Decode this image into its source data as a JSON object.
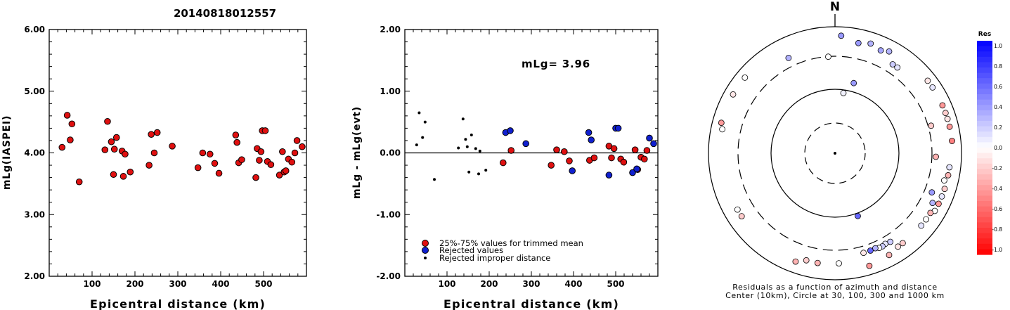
{
  "title": "20140818012557",
  "colors": {
    "used": "#e01010",
    "rejected": "#1020d0",
    "improper": "#000000",
    "outline": "#000000"
  },
  "chart_data": [
    {
      "id": "mlg",
      "type": "scatter",
      "xlabel": "Epicentral distance (km)",
      "ylabel": "mLg(IASPEI)",
      "xlim": [
        0,
        600
      ],
      "ylim": [
        2.0,
        6.0
      ],
      "xticks": [
        "100",
        "200",
        "300",
        "400",
        "500"
      ],
      "yticks": [
        "2.00",
        "3.00",
        "4.00",
        "5.00",
        "6.00"
      ],
      "points": [
        [
          30,
          4.09
        ],
        [
          42,
          4.61
        ],
        [
          49,
          4.21
        ],
        [
          53,
          4.47
        ],
        [
          70,
          3.53
        ],
        [
          130,
          4.05
        ],
        [
          136,
          4.51
        ],
        [
          145,
          4.18
        ],
        [
          150,
          3.65
        ],
        [
          152,
          4.06
        ],
        [
          157,
          4.25
        ],
        [
          170,
          4.03
        ],
        [
          173,
          3.62
        ],
        [
          177,
          3.98
        ],
        [
          189,
          3.69
        ],
        [
          233,
          3.8
        ],
        [
          238,
          4.3
        ],
        [
          245,
          4.0
        ],
        [
          252,
          4.33
        ],
        [
          287,
          4.11
        ],
        [
          347,
          3.76
        ],
        [
          358,
          4.0
        ],
        [
          375,
          3.98
        ],
        [
          386,
          3.83
        ],
        [
          396,
          3.67
        ],
        [
          435,
          4.29
        ],
        [
          438,
          4.17
        ],
        [
          442,
          3.84
        ],
        [
          449,
          3.89
        ],
        [
          482,
          3.6
        ],
        [
          485,
          4.07
        ],
        [
          490,
          3.88
        ],
        [
          494,
          4.02
        ],
        [
          497,
          4.36
        ],
        [
          504,
          4.36
        ],
        [
          509,
          3.86
        ],
        [
          517,
          3.81
        ],
        [
          537,
          3.64
        ],
        [
          544,
          4.02
        ],
        [
          548,
          3.69
        ],
        [
          552,
          3.71
        ],
        [
          558,
          3.9
        ],
        [
          566,
          3.85
        ],
        [
          573,
          4.0
        ],
        [
          578,
          4.2
        ],
        [
          590,
          4.1
        ]
      ]
    },
    {
      "id": "residuals",
      "type": "scatter",
      "xlabel": "Epicentral distance (km)",
      "ylabel": "mLg - mLg(evt)",
      "xlim": [
        0,
        600
      ],
      "ylim": [
        -2.0,
        2.0
      ],
      "xticks": [
        "100",
        "200",
        "300",
        "400",
        "500"
      ],
      "yticks": [
        "-2.00",
        "-1.00",
        "0.00",
        "1.00",
        "2.00"
      ],
      "annotation": "mLg= 3.96",
      "legend": [
        {
          "label": "25%-75% values for trimmed mean",
          "kind": "used"
        },
        {
          "label": "Rejected values",
          "kind": "rejected"
        },
        {
          "label": "Rejected improper distance",
          "kind": "improper"
        }
      ],
      "improper": [
        [
          28,
          0.13
        ],
        [
          34,
          0.65
        ],
        [
          42,
          0.25
        ],
        [
          48,
          0.5
        ],
        [
          70,
          -0.43
        ],
        [
          127,
          0.08
        ],
        [
          138,
          0.55
        ],
        [
          144,
          0.22
        ],
        [
          148,
          0.1
        ],
        [
          152,
          -0.31
        ],
        [
          158,
          0.29
        ],
        [
          168,
          0.07
        ],
        [
          175,
          -0.34
        ],
        [
          178,
          0.03
        ],
        [
          192,
          -0.28
        ]
      ],
      "used": [
        [
          233,
          -0.16
        ],
        [
          252,
          0.04
        ],
        [
          347,
          -0.2
        ],
        [
          360,
          0.05
        ],
        [
          378,
          0.02
        ],
        [
          390,
          -0.13
        ],
        [
          438,
          -0.12
        ],
        [
          449,
          -0.08
        ],
        [
          484,
          0.11
        ],
        [
          490,
          -0.08
        ],
        [
          496,
          0.07
        ],
        [
          512,
          -0.1
        ],
        [
          519,
          -0.15
        ],
        [
          546,
          0.05
        ],
        [
          552,
          -0.27
        ],
        [
          560,
          -0.07
        ],
        [
          568,
          -0.1
        ],
        [
          574,
          0.04
        ]
      ],
      "rejected": [
        [
          239,
          0.33
        ],
        [
          250,
          0.36
        ],
        [
          287,
          0.15
        ],
        [
          397,
          -0.29
        ],
        [
          436,
          0.33
        ],
        [
          442,
          0.21
        ],
        [
          484,
          -0.36
        ],
        [
          500,
          0.4
        ],
        [
          506,
          0.4
        ],
        [
          540,
          -0.32
        ],
        [
          550,
          -0.26
        ],
        [
          580,
          0.24
        ],
        [
          590,
          0.15
        ]
      ]
    },
    {
      "id": "azimuth",
      "type": "scatter",
      "north_label": "N",
      "caption_line1": "Residuals as a function of azimuth and distance",
      "caption_line2": "Center (10km), Circle at 30, 100, 300 and 1000 km",
      "colorbar_title": "Res",
      "colorbar_ticks": [
        "1.0",
        "0.8",
        "0.6",
        "0.4",
        "0.2",
        "0.0",
        "-0.2",
        "-0.4",
        "-0.6",
        "-0.8",
        "-1.0"
      ],
      "rings_km": [
        30,
        100,
        300,
        1000
      ],
      "stations": [
        {
          "az": 3,
          "dist": 1000,
          "res": 0.4
        },
        {
          "az": 12,
          "dist": 800,
          "res": 0.4
        },
        {
          "az": 18,
          "dist": 900,
          "res": 0.3
        },
        {
          "az": 24,
          "dist": 800,
          "res": 0.35
        },
        {
          "az": 28,
          "dist": 900,
          "res": 0.3
        },
        {
          "az": 33,
          "dist": 600,
          "res": 0.2
        },
        {
          "az": 36,
          "dist": 600,
          "res": 0.1
        },
        {
          "az": 334,
          "dist": 600,
          "res": 0.3
        },
        {
          "az": 356,
          "dist": 400,
          "res": 0.0
        },
        {
          "az": 15,
          "dist": 160,
          "res": 0.4
        },
        {
          "az": 8,
          "dist": 105,
          "res": 0.05
        },
        {
          "az": 160,
          "dist": 130,
          "res": 0.6
        },
        {
          "az": 300,
          "dist": 1000,
          "res": -0.1
        },
        {
          "az": 310,
          "dist": 1000,
          "res": 0.0
        },
        {
          "az": 285,
          "dist": 1000,
          "res": -0.4
        },
        {
          "az": 282,
          "dist": 900,
          "res": 0.0
        },
        {
          "az": 240,
          "dist": 800,
          "res": 0.0
        },
        {
          "az": 236,
          "dist": 800,
          "res": -0.2
        },
        {
          "az": 52,
          "dist": 1000,
          "res": -0.1
        },
        {
          "az": 56,
          "dist": 1000,
          "res": 0.1
        },
        {
          "az": 66,
          "dist": 1000,
          "res": -0.4
        },
        {
          "az": 70,
          "dist": 1000,
          "res": -0.2
        },
        {
          "az": 73,
          "dist": 1000,
          "res": -0.1
        },
        {
          "az": 77,
          "dist": 1000,
          "res": -0.4
        },
        {
          "az": 84,
          "dist": 1000,
          "res": -0.5
        },
        {
          "az": 97,
          "dist": 900,
          "res": 0.1
        },
        {
          "az": 101,
          "dist": 900,
          "res": -0.3
        },
        {
          "az": 104,
          "dist": 800,
          "res": 0.0
        },
        {
          "az": 108,
          "dist": 900,
          "res": -0.2
        },
        {
          "az": 112,
          "dist": 900,
          "res": 0.1
        },
        {
          "az": 116,
          "dist": 900,
          "res": -0.4
        },
        {
          "az": 120,
          "dist": 900,
          "res": 0.0
        },
        {
          "az": 122,
          "dist": 800,
          "res": -0.3
        },
        {
          "az": 126,
          "dist": 800,
          "res": 0.0
        },
        {
          "az": 130,
          "dist": 800,
          "res": 0.1
        },
        {
          "az": 112,
          "dist": 560,
          "res": 0.4
        },
        {
          "az": 117,
          "dist": 700,
          "res": 0.3
        },
        {
          "az": 74,
          "dist": 460,
          "res": -0.2
        },
        {
          "az": 92,
          "dist": 480,
          "res": -0.3
        },
        {
          "az": 148,
          "dist": 560,
          "res": 0.2
        },
        {
          "az": 151,
          "dist": 540,
          "res": 0.1
        },
        {
          "az": 153,
          "dist": 560,
          "res": 0.2
        },
        {
          "az": 155,
          "dist": 560,
          "res": 0.0
        },
        {
          "az": 157,
          "dist": 530,
          "res": 0.3
        },
        {
          "az": 160,
          "dist": 540,
          "res": 0.6
        },
        {
          "az": 164,
          "dist": 540,
          "res": -0.1
        },
        {
          "az": 143,
          "dist": 800,
          "res": -0.2
        },
        {
          "az": 146,
          "dist": 800,
          "res": -0.1
        },
        {
          "az": 152,
          "dist": 900,
          "res": -0.3
        },
        {
          "az": 163,
          "dist": 1000,
          "res": -0.4
        },
        {
          "az": 178,
          "dist": 720,
          "res": 0.0
        },
        {
          "az": 189,
          "dist": 750,
          "res": -0.3
        },
        {
          "az": 195,
          "dist": 740,
          "res": -0.2
        },
        {
          "az": 200,
          "dist": 900,
          "res": -0.3
        }
      ]
    }
  ]
}
